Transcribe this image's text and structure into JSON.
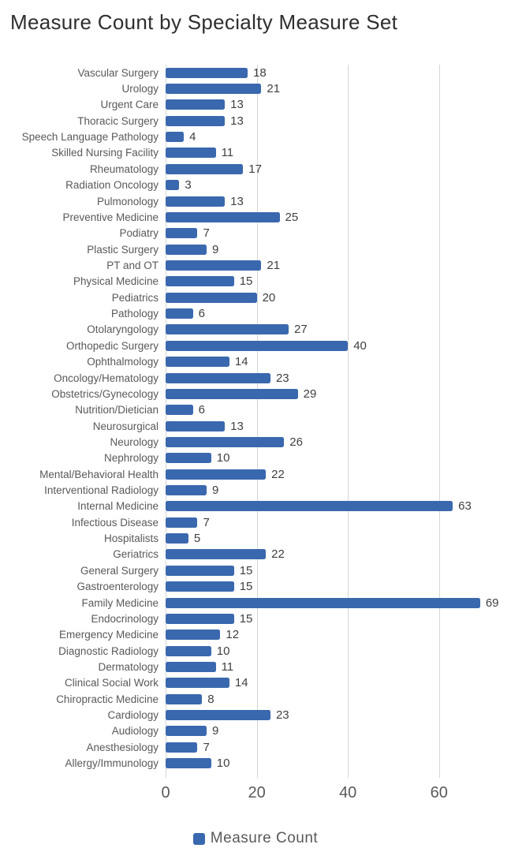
{
  "title": "Measure Count by Specialty Measure Set",
  "legend": {
    "label": "Measure Count"
  },
  "chart_data": {
    "type": "bar",
    "orientation": "horizontal",
    "title": "Measure Count by Specialty Measure Set",
    "categories": [
      "Vascular Surgery",
      "Urology",
      "Urgent Care",
      "Thoracic Surgery",
      "Speech Language Pathology",
      "Skilled Nursing Facility",
      "Rheumatology",
      "Radiation Oncology",
      "Pulmonology",
      "Preventive Medicine",
      "Podiatry",
      "Plastic Surgery",
      "PT and OT",
      "Physical Medicine",
      "Pediatrics",
      "Pathology",
      "Otolaryngology",
      "Orthopedic Surgery",
      "Ophthalmology",
      "Oncology/Hematology",
      "Obstetrics/Gynecology",
      "Nutrition/Dietician",
      "Neurosurgical",
      "Neurology",
      "Nephrology",
      "Mental/Behavioral Health",
      "Interventional Radiology",
      "Internal Medicine",
      "Infectious Disease",
      "Hospitalists",
      "Geriatrics",
      "General Surgery",
      "Gastroenterology",
      "Family Medicine",
      "Endocrinology",
      "Emergency Medicine",
      "Diagnostic Radiology",
      "Dermatology",
      "Clinical Social Work",
      "Chiropractic Medicine",
      "Cardiology",
      "Audiology",
      "Anesthesiology",
      "Allergy/Immunology"
    ],
    "values": [
      18,
      21,
      13,
      13,
      4,
      11,
      17,
      3,
      13,
      25,
      7,
      9,
      21,
      15,
      20,
      6,
      27,
      40,
      14,
      23,
      29,
      6,
      13,
      26,
      10,
      22,
      9,
      63,
      7,
      5,
      22,
      15,
      15,
      69,
      15,
      12,
      10,
      11,
      14,
      8,
      23,
      9,
      7,
      10
    ],
    "xlabel": "",
    "ylabel": "",
    "x_ticks": [
      0,
      20,
      40,
      60
    ],
    "xlim": [
      0,
      75
    ],
    "grid": true,
    "legend_entries": [
      "Measure Count"
    ],
    "legend_position": "bottom",
    "bar_color": "#3a68ae",
    "grid_color": "#d6d6d6",
    "label_color": "#595959",
    "value_label_color": "#404040"
  }
}
